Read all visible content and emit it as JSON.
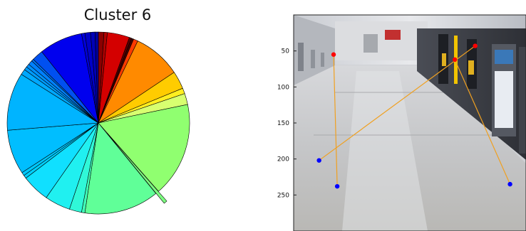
{
  "chart_data": [
    {
      "type": "pie",
      "title": "Cluster 6",
      "exploded_slice_index": 11,
      "slices": [
        {
          "value": 1.0,
          "color": "#8b0000"
        },
        {
          "value": 0.6,
          "color": "#b00000"
        },
        {
          "value": 4.0,
          "color": "#d40000"
        },
        {
          "value": 0.4,
          "color": "#5a0000"
        },
        {
          "value": 0.4,
          "color": "#400000"
        },
        {
          "value": 0.8,
          "color": "#ff3a00"
        },
        {
          "value": 8.6,
          "color": "#ff8a00"
        },
        {
          "value": 3.2,
          "color": "#ffcc00"
        },
        {
          "value": 1.0,
          "color": "#ffee20"
        },
        {
          "value": 2.0,
          "color": "#d8ff70"
        },
        {
          "value": 17.0,
          "color": "#90ff70"
        },
        {
          "value": 0.6,
          "color": "#7cff80"
        },
        {
          "value": 13.4,
          "color": "#60ff98"
        },
        {
          "value": 0.6,
          "color": "#40ffb8"
        },
        {
          "value": 2.2,
          "color": "#30f8d8"
        },
        {
          "value": 4.6,
          "color": "#20f0f0"
        },
        {
          "value": 5.0,
          "color": "#10e0ff"
        },
        {
          "value": 0.6,
          "color": "#00d0ff"
        },
        {
          "value": 0.6,
          "color": "#00c8ff"
        },
        {
          "value": 8.0,
          "color": "#00beff"
        },
        {
          "value": 10.4,
          "color": "#00b4ff"
        },
        {
          "value": 1.0,
          "color": "#00a8ff"
        },
        {
          "value": 0.6,
          "color": "#009cff"
        },
        {
          "value": 0.6,
          "color": "#0090ff"
        },
        {
          "value": 0.8,
          "color": "#0080ff"
        },
        {
          "value": 0.4,
          "color": "#0070f0"
        },
        {
          "value": 2.0,
          "color": "#0050f0"
        },
        {
          "value": 7.8,
          "color": "#0000ee"
        },
        {
          "value": 0.6,
          "color": "#0000d8"
        },
        {
          "value": 1.0,
          "color": "#0000c8"
        },
        {
          "value": 0.8,
          "color": "#0000b8"
        },
        {
          "value": 0.6,
          "color": "#0000a0"
        }
      ]
    },
    {
      "type": "scatter",
      "description_free": true,
      "ylim": [
        300,
        0
      ],
      "y_ticks": [
        "50",
        "100",
        "150",
        "200",
        "250"
      ],
      "background": "surveillance-camera-frame",
      "red_points": [
        {
          "x": 55,
          "y": 55
        },
        {
          "x": 250,
          "y": 43
        },
        {
          "x": 222,
          "y": 62
        }
      ],
      "blue_points": [
        {
          "x": 35,
          "y": 202
        },
        {
          "x": 60,
          "y": 238
        },
        {
          "x": 298,
          "y": 235
        }
      ],
      "segments": [
        {
          "from": {
            "x": 55,
            "y": 55
          },
          "to": {
            "x": 60,
            "y": 238
          }
        },
        {
          "from": {
            "x": 250,
            "y": 43
          },
          "to": {
            "x": 35,
            "y": 202
          }
        },
        {
          "from": {
            "x": 222,
            "y": 62
          },
          "to": {
            "x": 298,
            "y": 235
          }
        }
      ],
      "colors": {
        "start_point": "#ff0000",
        "end_point": "#0000ff",
        "segment": "#f0a020"
      }
    }
  ]
}
